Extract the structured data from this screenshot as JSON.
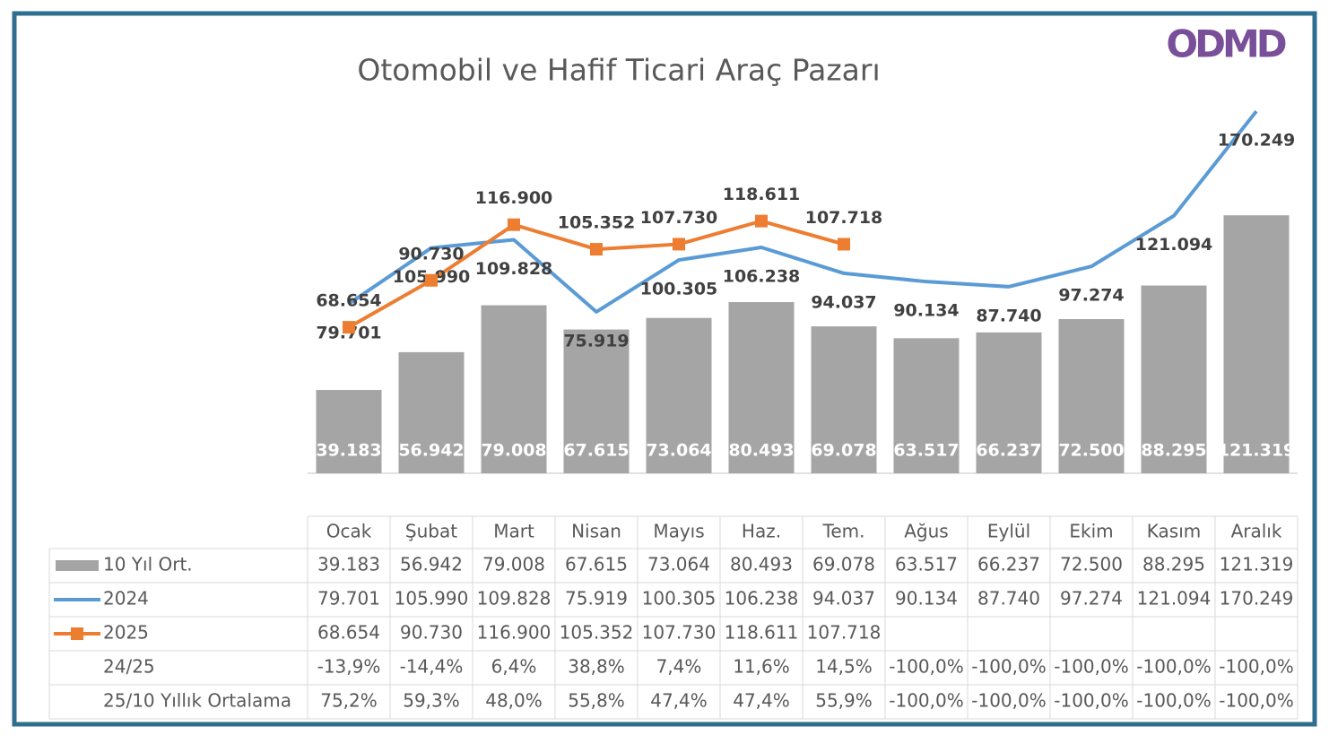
{
  "chart_data": {
    "type": "bar",
    "title": "Otomobil ve Hafif Ticari Araç Pazarı",
    "logo": "ODMD",
    "categories": [
      "Ocak",
      "Şubat",
      "Mart",
      "Nisan",
      "Mayıs",
      "Haz.",
      "Tem.",
      "Ağus",
      "Eylül",
      "Ekim",
      "Kasım",
      "Aralık"
    ],
    "ylim": [
      0,
      180000
    ],
    "series": [
      {
        "name": "10 Yıl Ort.",
        "type": "bar",
        "color": "#a5a5a5",
        "values": [
          39183,
          56942,
          79008,
          67615,
          73064,
          80493,
          69078,
          63517,
          66237,
          72500,
          88295,
          121319
        ],
        "value_labels": [
          "39.183",
          "56.942",
          "79.008",
          "67.615",
          "73.064",
          "80.493",
          "69.078",
          "63.517",
          "66.237",
          "72.500",
          "88.295",
          "121.319"
        ]
      },
      {
        "name": "2024",
        "type": "line",
        "color": "#5b9bd5",
        "values": [
          79701,
          105990,
          109828,
          75919,
          100305,
          106238,
          94037,
          90134,
          87740,
          97274,
          121094,
          170249
        ],
        "value_labels": [
          "79.701",
          "105.990",
          "109.828",
          "75.919",
          "100.305",
          "106.238",
          "94.037",
          "90.134",
          "87.740",
          "97.274",
          "121.094",
          "170.249"
        ]
      },
      {
        "name": "2025",
        "type": "line",
        "color": "#ed7d31",
        "marker": "square",
        "values": [
          68654,
          90730,
          116900,
          105352,
          107730,
          118611,
          107718,
          null,
          null,
          null,
          null,
          null
        ],
        "value_labels": [
          "68.654",
          "90.730",
          "116.900",
          "105.352",
          "107.730",
          "118.611",
          "107.718",
          null,
          null,
          null,
          null,
          null
        ]
      }
    ],
    "table_rows": [
      {
        "label": "24/25",
        "cells": [
          "-13,9%",
          "-14,4%",
          "6,4%",
          "38,8%",
          "7,4%",
          "11,6%",
          "14,5%",
          "-100,0%",
          "-100,0%",
          "-100,0%",
          "-100,0%",
          "-100,0%"
        ]
      },
      {
        "label": "25/10 Yıllık Ortalama",
        "cells": [
          "75,2%",
          "59,3%",
          "48,0%",
          "55,8%",
          "47,4%",
          "47,4%",
          "55,9%",
          "-100,0%",
          "-100,0%",
          "-100,0%",
          "-100,0%",
          "-100,0%"
        ]
      }
    ]
  }
}
